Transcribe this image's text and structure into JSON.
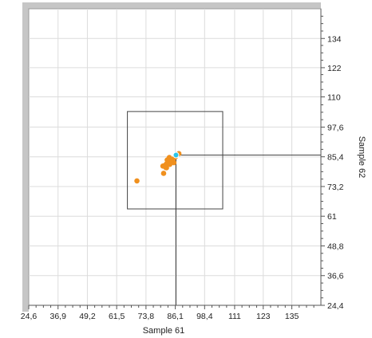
{
  "chart_data": {
    "type": "scatter",
    "title": "",
    "xlabel": "Sample 61",
    "ylabel": "Sample 62",
    "xlim": [
      24.6,
      147.2
    ],
    "ylim": [
      24.4,
      146.2
    ],
    "x_ticks": [
      "24,6",
      "36,9",
      "49,2",
      "61,5",
      "73,8",
      "86,1",
      "98,4",
      "111",
      "123",
      "135"
    ],
    "y_ticks": [
      "24,4",
      "36,6",
      "48,8",
      "61",
      "73,2",
      "85,4",
      "97,6",
      "110",
      "122",
      "134"
    ],
    "grid": true,
    "series": [
      {
        "color": "#f0901e",
        "points": [
          [
            70.0,
            75.5
          ],
          [
            81.2,
            78.6
          ],
          [
            80.9,
            81.6
          ],
          [
            81.8,
            81.9
          ],
          [
            82.4,
            80.9
          ],
          [
            82.4,
            82.5
          ],
          [
            83.2,
            83.2
          ],
          [
            83.8,
            82.3
          ],
          [
            84.1,
            83.6
          ],
          [
            82.7,
            84.1
          ],
          [
            84.6,
            84.3
          ],
          [
            85.1,
            84.1
          ],
          [
            83.6,
            85.1
          ],
          [
            86.1,
            85.3
          ],
          [
            87.6,
            86.7
          ],
          [
            82.1,
            81.0
          ],
          [
            85.5,
            83.0
          ]
        ]
      }
    ],
    "highlight_point": {
      "x": 86.4,
      "y": 86.1,
      "color": "#29c4e8"
    },
    "selection_box": {
      "x_range": [
        66.0,
        106.0
      ],
      "y_range": [
        64.0,
        104.0
      ]
    },
    "crosshair": {
      "x": 86.4,
      "y": 86.1
    }
  }
}
